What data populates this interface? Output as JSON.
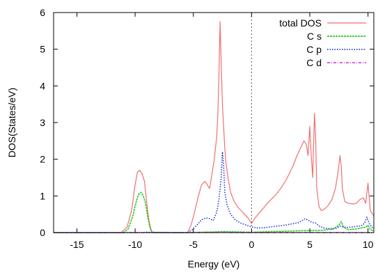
{
  "chart_data": {
    "type": "line",
    "title": "",
    "xlabel": "Energy (eV)",
    "ylabel": "DOS(States/eV)",
    "xlim": [
      -17,
      10.5
    ],
    "ylim": [
      0,
      6
    ],
    "xticks": [
      -15,
      -10,
      -5,
      0,
      5,
      10
    ],
    "yticks": [
      0,
      1,
      2,
      3,
      4,
      5,
      6
    ],
    "grid": false,
    "legend_position": "top-right",
    "fermi_level": 0,
    "series": [
      {
        "name": "total DOS",
        "color": "#f06f6f",
        "dash": "solid",
        "x": [
          -17,
          -11.2,
          -10.7,
          -10.3,
          -10.0,
          -9.8,
          -9.6,
          -9.4,
          -9.2,
          -9.0,
          -8.8,
          -8.6,
          -8.5,
          -5.5,
          -5.2,
          -4.9,
          -4.6,
          -4.3,
          -4.0,
          -3.8,
          -3.6,
          -3.4,
          -3.2,
          -3.0,
          -2.9,
          -2.8,
          -2.7,
          -2.6,
          -2.5,
          -2.4,
          -2.3,
          -2.2,
          -2.0,
          -1.8,
          -1.5,
          -1.2,
          -0.9,
          -0.6,
          -0.3,
          -0.1,
          0.0,
          0.3,
          0.7,
          1.1,
          1.5,
          2.0,
          2.5,
          3.0,
          3.3,
          3.6,
          3.9,
          4.2,
          4.5,
          4.7,
          4.85,
          5.0,
          5.1,
          5.25,
          5.4,
          5.5,
          5.6,
          5.8,
          6.0,
          6.3,
          6.6,
          6.9,
          7.2,
          7.4,
          7.6,
          7.7,
          7.8,
          8.0,
          8.3,
          8.7,
          9.0,
          9.3,
          9.6,
          9.8,
          10.0,
          10.2,
          10.5
        ],
        "y": [
          0,
          0,
          0.15,
          0.6,
          1.3,
          1.65,
          1.7,
          1.6,
          1.4,
          0.8,
          0.3,
          0.05,
          0,
          0,
          0.2,
          0.55,
          0.95,
          1.3,
          1.4,
          1.3,
          1.2,
          1.6,
          2.0,
          2.6,
          3.2,
          4.3,
          5.75,
          4.5,
          3.5,
          2.9,
          2.3,
          1.9,
          1.45,
          1.1,
          0.85,
          0.7,
          0.6,
          0.5,
          0.4,
          0.3,
          0.25,
          0.4,
          0.55,
          0.7,
          0.85,
          1.0,
          1.2,
          1.45,
          1.65,
          1.85,
          2.1,
          2.3,
          2.5,
          2.4,
          2.1,
          2.9,
          2.2,
          1.5,
          3.25,
          2.6,
          1.2,
          0.7,
          0.6,
          0.65,
          0.75,
          0.9,
          1.2,
          1.6,
          2.1,
          1.8,
          1.2,
          0.85,
          0.8,
          0.78,
          0.8,
          0.9,
          0.95,
          0.8,
          1.35,
          0.6,
          0.45
        ]
      },
      {
        "name": "C s",
        "color": "#22cc22",
        "dash": "dense-dash",
        "x": [
          -17,
          -11.0,
          -10.6,
          -10.2,
          -9.9,
          -9.7,
          -9.5,
          -9.3,
          -9.1,
          -8.9,
          -8.7,
          -8.5,
          -5.5,
          -3.0,
          -2.5,
          -1.5,
          0.0,
          2.0,
          4.0,
          5.0,
          6.0,
          7.0,
          7.5,
          7.7,
          7.9,
          8.3,
          9.0,
          9.8,
          10.0,
          10.2,
          10.5
        ],
        "y": [
          0,
          0,
          0.1,
          0.45,
          0.85,
          1.05,
          1.1,
          1.0,
          0.8,
          0.4,
          0.1,
          0,
          0,
          0.02,
          0.03,
          0.02,
          0.01,
          0.03,
          0.05,
          0.06,
          0.06,
          0.1,
          0.2,
          0.3,
          0.15,
          0.08,
          0.1,
          0.15,
          0.2,
          0.08,
          0.05
        ]
      },
      {
        "name": "C p",
        "color": "#2233dd",
        "dash": "dotted",
        "x": [
          -17,
          -9.5,
          -9.0,
          -5.5,
          -5.1,
          -4.7,
          -4.3,
          -3.9,
          -3.6,
          -3.3,
          -3.0,
          -2.9,
          -2.8,
          -2.7,
          -2.6,
          -2.5,
          -2.4,
          -2.3,
          -2.1,
          -1.8,
          -1.4,
          -1.0,
          -0.6,
          -0.2,
          0.0,
          0.5,
          1.0,
          1.5,
          2.0,
          2.5,
          3.0,
          3.5,
          4.0,
          4.3,
          4.6,
          4.9,
          5.2,
          5.5,
          5.8,
          6.2,
          6.6,
          7.0,
          7.3,
          7.6,
          7.9,
          8.2,
          8.6,
          9.0,
          9.4,
          9.7,
          9.9,
          10.1,
          10.3,
          10.5
        ],
        "y": [
          0,
          0,
          0.01,
          0,
          0.08,
          0.2,
          0.35,
          0.4,
          0.38,
          0.33,
          0.55,
          0.7,
          0.9,
          1.2,
          1.55,
          2.2,
          1.85,
          1.1,
          0.75,
          0.5,
          0.35,
          0.27,
          0.22,
          0.18,
          0.15,
          0.13,
          0.13,
          0.15,
          0.17,
          0.19,
          0.21,
          0.24,
          0.27,
          0.32,
          0.38,
          0.33,
          0.28,
          0.26,
          0.18,
          0.13,
          0.11,
          0.1,
          0.12,
          0.18,
          0.15,
          0.14,
          0.15,
          0.17,
          0.18,
          0.25,
          0.42,
          0.25,
          0.16,
          0.1
        ]
      },
      {
        "name": "C d",
        "color": "#e040e0",
        "dash": "dash-dot",
        "x": [
          -17,
          -10.0,
          -5.0,
          -2.5,
          0.0,
          5.0,
          10.5
        ],
        "y": [
          0,
          0,
          0,
          0.005,
          0,
          0.005,
          0
        ]
      }
    ]
  }
}
